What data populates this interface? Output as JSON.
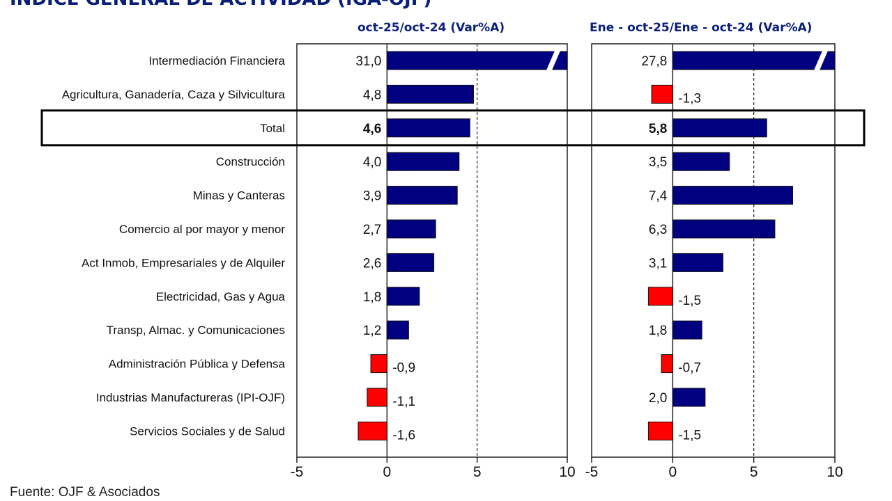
{
  "chart_data": [
    {
      "type": "bar",
      "orientation": "horizontal",
      "title": "ÍNDICE GENERAL DE ACTIVIDAD (IGA-OJF)",
      "subtitle": "oct-25/oct-24  (Var%A)",
      "categories": [
        "Intermediación Financiera",
        "Agricultura, Ganadería, Caza y Silvicultura",
        "Total",
        "Construcción",
        "Minas y Canteras",
        "Comercio al por mayor y menor",
        "Act Inmob, Empresariales y de Alquiler",
        "Electricidad, Gas y Agua",
        "Transp, Almac. y Comunicaciones",
        "Administración Pública y Defensa",
        "Industrias Manufactureras (IPI-OJF)",
        "Servicios Sociales y de Salud"
      ],
      "values": [
        31.0,
        4.8,
        4.6,
        4.0,
        3.9,
        2.7,
        2.6,
        1.8,
        1.2,
        -0.9,
        -1.1,
        -1.6
      ],
      "labels": [
        "31,0",
        "4,8",
        "4,6",
        "4,0",
        "3,9",
        "2,7",
        "2,6",
        "1,8",
        "1,2",
        "-0,9",
        "-1,1",
        "-1,6"
      ],
      "xlim": [
        -5,
        10
      ],
      "xticks": [
        "-5",
        "0",
        "5",
        "10"
      ],
      "reference_line": 5,
      "truncated": [
        "Intermediación Financiera"
      ],
      "highlight": "Total"
    },
    {
      "type": "bar",
      "orientation": "horizontal",
      "subtitle": "Ene - oct-25/Ene - oct-24  (Var%A)",
      "categories": [
        "Intermediación Financiera",
        "Agricultura, Ganadería, Caza y Silvicultura",
        "Total",
        "Construcción",
        "Minas y Canteras",
        "Comercio al por mayor y menor",
        "Act Inmob, Empresariales y de Alquiler",
        "Electricidad, Gas y Agua",
        "Transp, Almac. y Comunicaciones",
        "Administración Pública y Defensa",
        "Industrias Manufactureras (IPI-OJF)",
        "Servicios Sociales y de Salud"
      ],
      "values": [
        27.8,
        -1.3,
        5.8,
        3.5,
        7.4,
        6.3,
        3.1,
        -1.5,
        1.8,
        -0.7,
        2.0,
        -1.5
      ],
      "labels": [
        "27,8",
        "-1,3",
        "5,8",
        "3,5",
        "7,4",
        "6,3",
        "3,1",
        "-1,5",
        "1,8",
        "-0,7",
        "2,0",
        "-1,5"
      ],
      "xlim": [
        -5,
        10
      ],
      "xticks": [
        "-5",
        "0",
        "5",
        "10"
      ],
      "reference_line": 5,
      "truncated": [
        "Intermediación Financiera"
      ],
      "highlight": "Total"
    }
  ],
  "colors": {
    "positive": "#000080",
    "negative": "#ff0000",
    "title": "#0a1f78"
  },
  "source": "Fuente: OJF & Asociados"
}
